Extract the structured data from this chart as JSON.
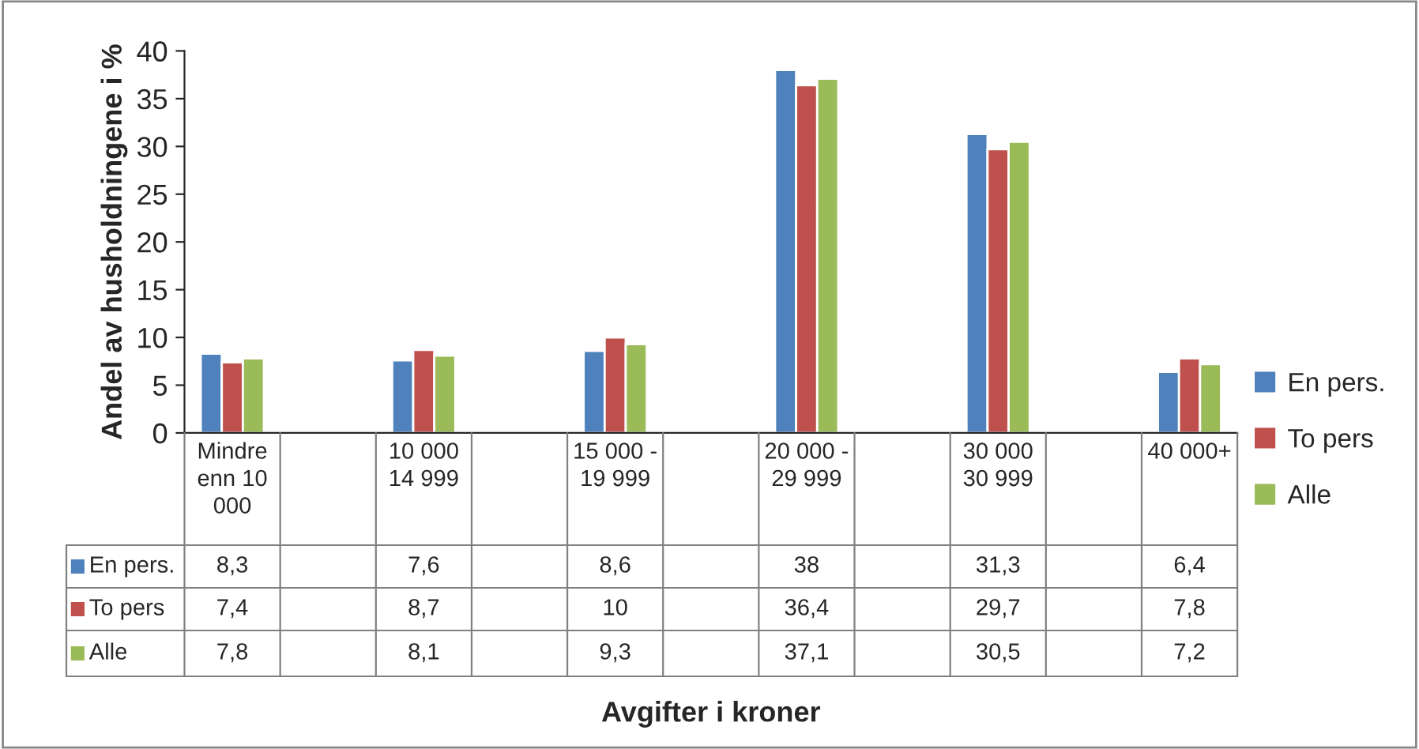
{
  "chart_data": {
    "type": "bar",
    "ylabel": "Andel av husholdningene i %",
    "annotations": [
      "Avgifter i kroner"
    ],
    "categories": [
      "Mindre enn 10 000",
      null,
      "10 000 14 999",
      null,
      "15 000 - 19 999",
      null,
      "20 000 - 29 999",
      null,
      "30 000 30 999",
      null,
      "40 000+"
    ],
    "series": [
      {
        "name": "En pers.",
        "color": "#4f81bd",
        "values": [
          8.3,
          null,
          7.6,
          null,
          8.6,
          null,
          38,
          null,
          31.3,
          null,
          6.4
        ],
        "value_labels": [
          "8,3",
          null,
          "7,6",
          null,
          "8,6",
          null,
          "38",
          null,
          "31,3",
          null,
          "6,4"
        ]
      },
      {
        "name": "To pers",
        "color": "#c0504d",
        "values": [
          7.4,
          null,
          8.7,
          null,
          10,
          null,
          36.4,
          null,
          29.7,
          null,
          7.8
        ],
        "value_labels": [
          "7,4",
          null,
          "8,7",
          null,
          "10",
          null,
          "36,4",
          null,
          "29,7",
          null,
          "7,8"
        ]
      },
      {
        "name": "Alle",
        "color": "#9bbb59",
        "values": [
          7.8,
          null,
          8.1,
          null,
          9.3,
          null,
          37.1,
          null,
          30.5,
          null,
          7.2
        ],
        "value_labels": [
          "7,8",
          null,
          "8,1",
          null,
          "9,3",
          null,
          "37,1",
          null,
          "30,5",
          null,
          "7,2"
        ]
      }
    ],
    "ylim": [
      0,
      40
    ],
    "yticks": [
      0,
      5,
      10,
      15,
      20,
      25,
      30,
      35,
      40
    ],
    "grid": false,
    "legend": "right"
  }
}
